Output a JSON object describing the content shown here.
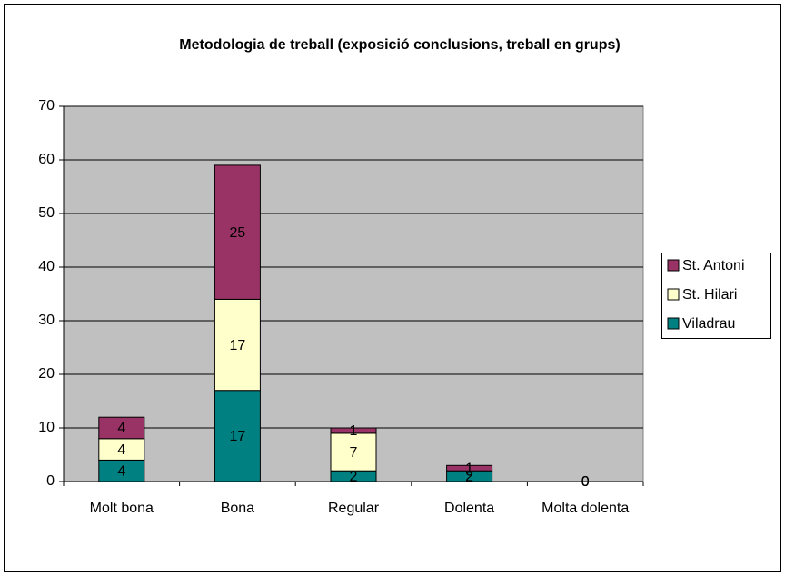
{
  "chart_data": {
    "type": "bar",
    "stacked": true,
    "title": "Metodologia de treball (exposició conclusions, treball en grups)",
    "categories": [
      "Molt bona",
      "Bona",
      "Regular",
      "Dolenta",
      "Molta dolenta"
    ],
    "series": [
      {
        "name": "Viladrau",
        "color": "#008080",
        "values": [
          4,
          17,
          2,
          2,
          0
        ]
      },
      {
        "name": "St. Hilari",
        "color": "#ffffcc",
        "values": [
          4,
          17,
          7,
          0,
          0
        ]
      },
      {
        "name": "St. Antoni",
        "color": "#993366",
        "values": [
          4,
          25,
          1,
          1,
          0
        ]
      }
    ],
    "ylim": [
      0,
      70
    ],
    "yticks": [
      0,
      10,
      20,
      30,
      40,
      50,
      60,
      70
    ],
    "grid": true,
    "legend": "right"
  }
}
